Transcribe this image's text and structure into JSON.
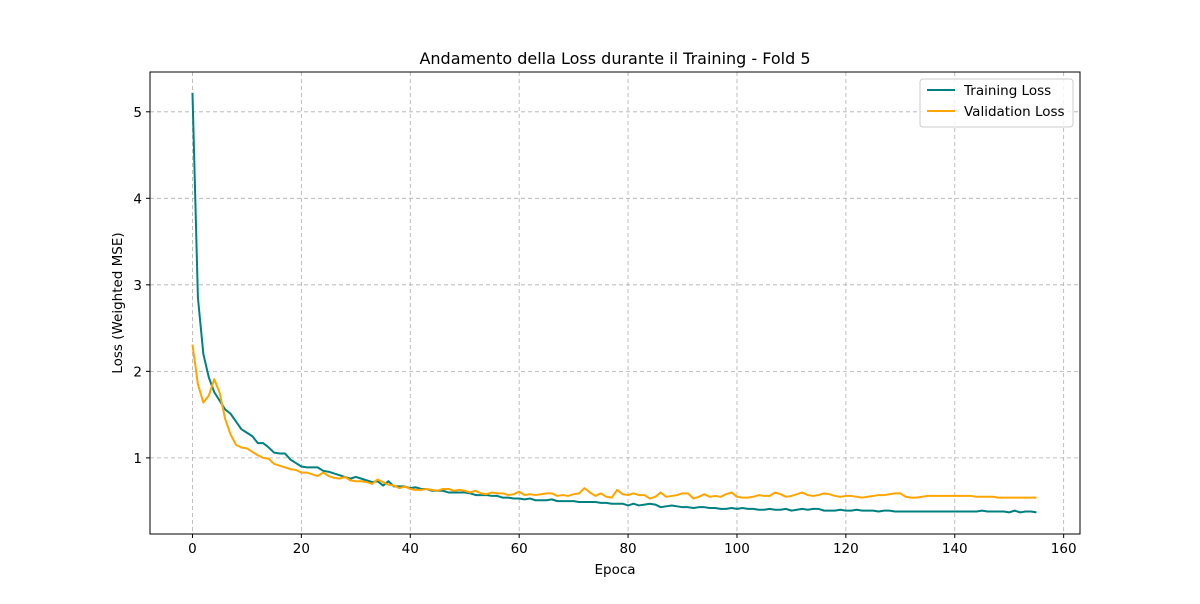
{
  "chart_data": {
    "type": "line",
    "title": "Andamento della Loss durante il Training - Fold 5",
    "xlabel": "Epoca",
    "ylabel": "Loss (Weighted MSE)",
    "xlim": [
      -7.8,
      163
    ],
    "ylim": [
      0.12,
      5.46
    ],
    "xticks": [
      0,
      20,
      40,
      60,
      80,
      100,
      120,
      140,
      160
    ],
    "yticks": [
      1,
      2,
      3,
      4,
      5
    ],
    "grid": true,
    "legend_position": "top-right",
    "series": [
      {
        "name": "Training Loss",
        "color": "#008080",
        "x": [
          0,
          1,
          2,
          3,
          4,
          5,
          6,
          7,
          8,
          9,
          10,
          11,
          12,
          13,
          14,
          15,
          16,
          17,
          18,
          19,
          20,
          21,
          22,
          23,
          24,
          25,
          26,
          27,
          28,
          29,
          30,
          31,
          32,
          33,
          34,
          35,
          36,
          37,
          38,
          39,
          40,
          41,
          42,
          43,
          44,
          45,
          46,
          47,
          48,
          49,
          50,
          51,
          52,
          53,
          54,
          55,
          56,
          57,
          58,
          59,
          60,
          61,
          62,
          63,
          64,
          65,
          66,
          67,
          68,
          69,
          70,
          71,
          72,
          73,
          74,
          75,
          76,
          77,
          78,
          79,
          80,
          81,
          82,
          83,
          84,
          85,
          86,
          87,
          88,
          89,
          90,
          91,
          92,
          93,
          94,
          95,
          96,
          97,
          98,
          99,
          100,
          101,
          102,
          103,
          104,
          105,
          106,
          107,
          108,
          109,
          110,
          111,
          112,
          113,
          114,
          115,
          116,
          117,
          118,
          119,
          120,
          121,
          122,
          123,
          124,
          125,
          126,
          127,
          128,
          129,
          130,
          131,
          132,
          133,
          134,
          135,
          136,
          137,
          138,
          139,
          140,
          141,
          142,
          143,
          144,
          145,
          146,
          147,
          148,
          149,
          150,
          151,
          152,
          153,
          154,
          155
        ],
        "y": [
          5.22,
          2.85,
          2.2,
          1.93,
          1.76,
          1.66,
          1.56,
          1.51,
          1.42,
          1.33,
          1.29,
          1.25,
          1.17,
          1.17,
          1.12,
          1.06,
          1.05,
          1.05,
          0.98,
          0.94,
          0.9,
          0.89,
          0.89,
          0.89,
          0.85,
          0.84,
          0.82,
          0.8,
          0.78,
          0.76,
          0.78,
          0.76,
          0.74,
          0.72,
          0.73,
          0.68,
          0.73,
          0.67,
          0.67,
          0.67,
          0.65,
          0.66,
          0.64,
          0.64,
          0.62,
          0.62,
          0.62,
          0.6,
          0.6,
          0.6,
          0.6,
          0.59,
          0.57,
          0.57,
          0.57,
          0.56,
          0.56,
          0.54,
          0.54,
          0.53,
          0.53,
          0.52,
          0.53,
          0.51,
          0.51,
          0.51,
          0.52,
          0.5,
          0.5,
          0.5,
          0.5,
          0.49,
          0.49,
          0.49,
          0.49,
          0.48,
          0.48,
          0.47,
          0.47,
          0.47,
          0.45,
          0.47,
          0.45,
          0.46,
          0.47,
          0.46,
          0.43,
          0.44,
          0.45,
          0.44,
          0.43,
          0.43,
          0.42,
          0.43,
          0.43,
          0.42,
          0.42,
          0.41,
          0.41,
          0.42,
          0.41,
          0.42,
          0.41,
          0.41,
          0.4,
          0.4,
          0.41,
          0.4,
          0.4,
          0.41,
          0.39,
          0.4,
          0.41,
          0.4,
          0.41,
          0.41,
          0.39,
          0.39,
          0.39,
          0.4,
          0.39,
          0.39,
          0.4,
          0.39,
          0.39,
          0.39,
          0.38,
          0.39,
          0.39,
          0.38,
          0.38,
          0.38,
          0.38,
          0.38,
          0.38,
          0.38,
          0.38,
          0.38,
          0.38,
          0.38,
          0.38,
          0.38,
          0.38,
          0.38,
          0.38,
          0.39,
          0.38,
          0.38,
          0.38,
          0.38,
          0.37,
          0.39,
          0.37,
          0.38,
          0.38,
          0.37
        ]
      },
      {
        "name": "Validation Loss",
        "color": "#FFA500",
        "x": [
          0,
          1,
          2,
          3,
          4,
          5,
          6,
          7,
          8,
          9,
          10,
          11,
          12,
          13,
          14,
          15,
          16,
          17,
          18,
          19,
          20,
          21,
          22,
          23,
          24,
          25,
          26,
          27,
          28,
          29,
          30,
          31,
          32,
          33,
          34,
          35,
          36,
          37,
          38,
          39,
          40,
          41,
          42,
          43,
          44,
          45,
          46,
          47,
          48,
          49,
          50,
          51,
          52,
          53,
          54,
          55,
          56,
          57,
          58,
          59,
          60,
          61,
          62,
          63,
          64,
          65,
          66,
          67,
          68,
          69,
          70,
          71,
          72,
          73,
          74,
          75,
          76,
          77,
          78,
          79,
          80,
          81,
          82,
          83,
          84,
          85,
          86,
          87,
          88,
          89,
          90,
          91,
          92,
          93,
          94,
          95,
          96,
          97,
          98,
          99,
          100,
          101,
          102,
          103,
          104,
          105,
          106,
          107,
          108,
          109,
          110,
          111,
          112,
          113,
          114,
          115,
          116,
          117,
          118,
          119,
          120,
          121,
          122,
          123,
          124,
          125,
          126,
          127,
          128,
          129,
          130,
          131,
          132,
          133,
          134,
          135,
          136,
          137,
          138,
          139,
          140,
          141,
          142,
          143,
          144,
          145,
          146,
          147,
          148,
          149,
          150,
          151,
          152,
          153,
          154,
          155
        ],
        "y": [
          2.31,
          1.85,
          1.64,
          1.72,
          1.91,
          1.75,
          1.45,
          1.27,
          1.15,
          1.12,
          1.11,
          1.07,
          1.03,
          1.0,
          0.99,
          0.93,
          0.91,
          0.89,
          0.87,
          0.86,
          0.83,
          0.83,
          0.81,
          0.79,
          0.83,
          0.79,
          0.77,
          0.76,
          0.78,
          0.74,
          0.73,
          0.73,
          0.72,
          0.7,
          0.75,
          0.72,
          0.69,
          0.68,
          0.65,
          0.67,
          0.64,
          0.63,
          0.63,
          0.64,
          0.63,
          0.62,
          0.64,
          0.64,
          0.62,
          0.63,
          0.62,
          0.6,
          0.62,
          0.59,
          0.58,
          0.6,
          0.59,
          0.59,
          0.57,
          0.58,
          0.61,
          0.57,
          0.58,
          0.57,
          0.58,
          0.59,
          0.59,
          0.56,
          0.57,
          0.56,
          0.58,
          0.59,
          0.65,
          0.6,
          0.56,
          0.59,
          0.55,
          0.54,
          0.63,
          0.58,
          0.57,
          0.59,
          0.57,
          0.57,
          0.53,
          0.55,
          0.6,
          0.55,
          0.56,
          0.57,
          0.59,
          0.59,
          0.53,
          0.55,
          0.58,
          0.55,
          0.56,
          0.55,
          0.58,
          0.6,
          0.55,
          0.54,
          0.54,
          0.55,
          0.57,
          0.56,
          0.56,
          0.6,
          0.58,
          0.55,
          0.56,
          0.58,
          0.6,
          0.57,
          0.56,
          0.57,
          0.59,
          0.58,
          0.56,
          0.55,
          0.56,
          0.56,
          0.55,
          0.54,
          0.55,
          0.56,
          0.57,
          0.57,
          0.58,
          0.59,
          0.59,
          0.55,
          0.54,
          0.54,
          0.55,
          0.56,
          0.56,
          0.56,
          0.56,
          0.56,
          0.56,
          0.56,
          0.56,
          0.56,
          0.55,
          0.55,
          0.55,
          0.55,
          0.54,
          0.54,
          0.54,
          0.54,
          0.54,
          0.54,
          0.54,
          0.54
        ]
      }
    ]
  }
}
